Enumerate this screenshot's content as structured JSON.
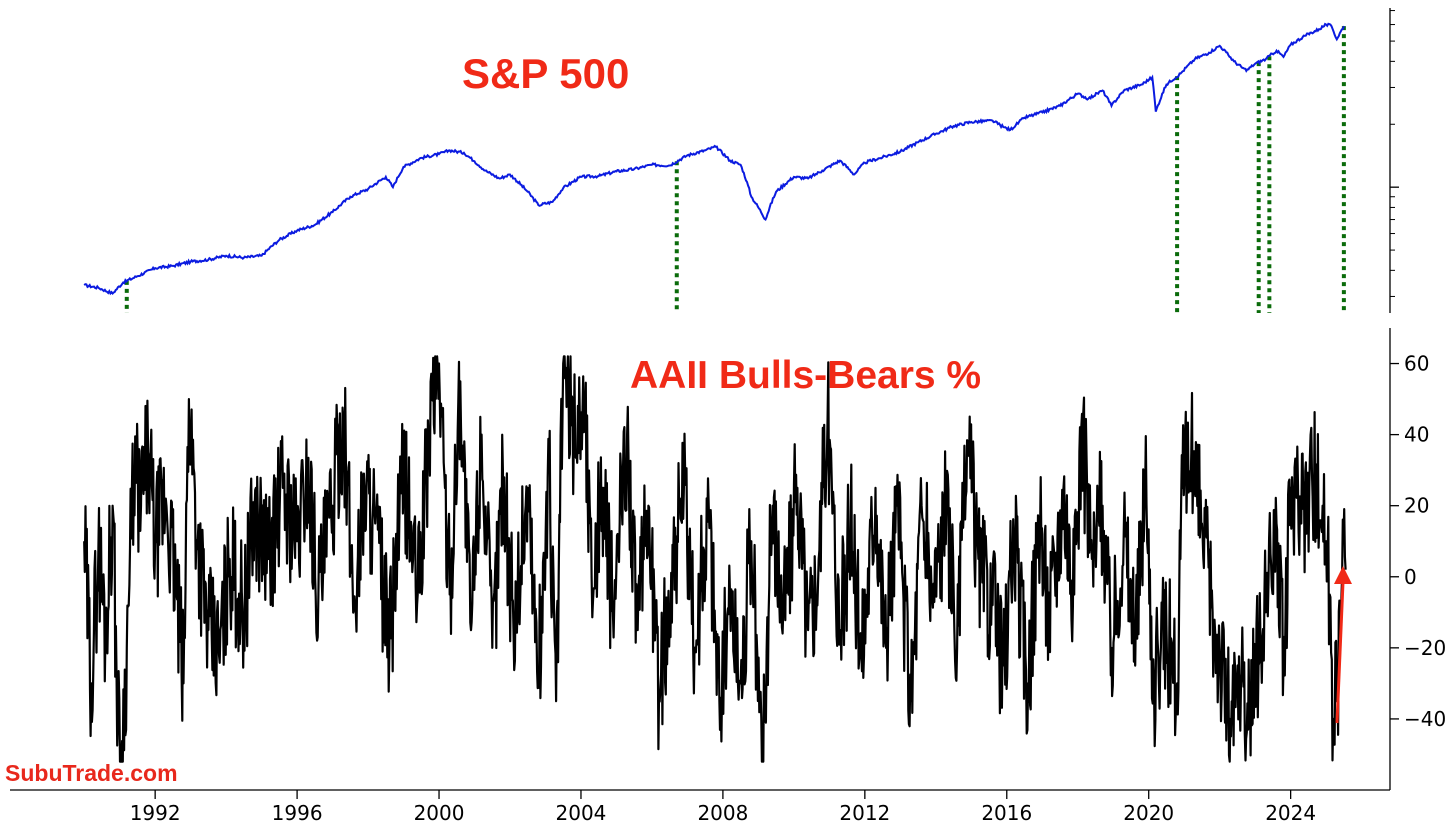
{
  "watermark": "SubuTrade.com",
  "colors": {
    "sp_line": "#0b1be0",
    "aaii_line": "#000000",
    "annotation": "#f02a17",
    "signal": "#0a6b0a"
  },
  "chart_data": [
    {
      "type": "line",
      "title": "S&P 500",
      "yscale": "log",
      "xlim": [
        1989.6,
        2026.8
      ],
      "ylim": [
        250,
        7200
      ],
      "ytick_values": [
        1000
      ],
      "x_ticks": [
        "1992",
        "1996",
        "2000",
        "2004",
        "2008",
        "2012",
        "2016",
        "2020",
        "2024"
      ],
      "series": [
        {
          "points": [
            [
              1990.0,
              340
            ],
            [
              1990.4,
              330
            ],
            [
              1990.8,
              310
            ],
            [
              1991.1,
              350
            ],
            [
              1991.5,
              375
            ],
            [
              1992.0,
              410
            ],
            [
              1992.5,
              420
            ],
            [
              1993.0,
              440
            ],
            [
              1993.5,
              450
            ],
            [
              1994.0,
              470
            ],
            [
              1994.5,
              460
            ],
            [
              1995.0,
              470
            ],
            [
              1995.5,
              560
            ],
            [
              1996.0,
              620
            ],
            [
              1996.5,
              660
            ],
            [
              1997.0,
              760
            ],
            [
              1997.5,
              900
            ],
            [
              1998.0,
              980
            ],
            [
              1998.5,
              1120
            ],
            [
              1998.7,
              1000
            ],
            [
              1999.0,
              1250
            ],
            [
              1999.5,
              1380
            ],
            [
              2000.0,
              1440
            ],
            [
              2000.3,
              1500
            ],
            [
              2000.7,
              1460
            ],
            [
              2001.0,
              1330
            ],
            [
              2001.3,
              1200
            ],
            [
              2001.7,
              1100
            ],
            [
              2002.0,
              1150
            ],
            [
              2002.5,
              950
            ],
            [
              2002.8,
              820
            ],
            [
              2003.2,
              850
            ],
            [
              2003.5,
              990
            ],
            [
              2004.0,
              1120
            ],
            [
              2004.5,
              1130
            ],
            [
              2005.0,
              1190
            ],
            [
              2005.5,
              1220
            ],
            [
              2006.0,
              1280
            ],
            [
              2006.5,
              1270
            ],
            [
              2007.0,
              1420
            ],
            [
              2007.5,
              1500
            ],
            [
              2007.8,
              1560
            ],
            [
              2008.2,
              1340
            ],
            [
              2008.5,
              1280
            ],
            [
              2008.8,
              900
            ],
            [
              2009.2,
              700
            ],
            [
              2009.5,
              950
            ],
            [
              2010.0,
              1120
            ],
            [
              2010.4,
              1100
            ],
            [
              2010.8,
              1200
            ],
            [
              2011.3,
              1340
            ],
            [
              2011.7,
              1150
            ],
            [
              2012.0,
              1310
            ],
            [
              2012.5,
              1390
            ],
            [
              2013.0,
              1480
            ],
            [
              2013.5,
              1640
            ],
            [
              2014.0,
              1800
            ],
            [
              2014.5,
              1960
            ],
            [
              2015.0,
              2050
            ],
            [
              2015.6,
              2080
            ],
            [
              2015.9,
              1940
            ],
            [
              2016.1,
              1880
            ],
            [
              2016.5,
              2150
            ],
            [
              2017.0,
              2280
            ],
            [
              2017.5,
              2450
            ],
            [
              2018.0,
              2800
            ],
            [
              2018.3,
              2650
            ],
            [
              2018.7,
              2900
            ],
            [
              2018.95,
              2450
            ],
            [
              2019.3,
              2900
            ],
            [
              2019.8,
              3100
            ],
            [
              2020.1,
              3350
            ],
            [
              2020.2,
              2300
            ],
            [
              2020.5,
              3100
            ],
            [
              2020.9,
              3500
            ],
            [
              2021.3,
              4100
            ],
            [
              2021.7,
              4400
            ],
            [
              2022.0,
              4750
            ],
            [
              2022.4,
              4000
            ],
            [
              2022.75,
              3600
            ],
            [
              2023.0,
              3900
            ],
            [
              2023.3,
              4100
            ],
            [
              2023.6,
              4500
            ],
            [
              2023.8,
              4200
            ],
            [
              2024.0,
              4800
            ],
            [
              2024.4,
              5300
            ],
            [
              2024.8,
              5700
            ],
            [
              2025.0,
              6000
            ],
            [
              2025.15,
              5900
            ],
            [
              2025.3,
              5100
            ],
            [
              2025.5,
              5900
            ]
          ]
        }
      ],
      "signal_years": [
        1991.2,
        2006.7,
        2020.8,
        2023.1,
        2023.4,
        2025.5
      ]
    },
    {
      "type": "line",
      "title": "AAII Bulls-Bears %",
      "xlim": [
        1989.6,
        2026.8
      ],
      "ylim": [
        -60,
        70
      ],
      "yticks": [
        "−40",
        "−20",
        "0",
        "20",
        "40",
        "60"
      ],
      "ytick_values": [
        -40,
        -20,
        0,
        20,
        40,
        60
      ],
      "x_ticks": [
        "1992",
        "1996",
        "2000",
        "2004",
        "2008",
        "2012",
        "2016",
        "2020",
        "2024"
      ],
      "x_tick_values": [
        1992,
        1996,
        2000,
        2004,
        2008,
        2012,
        2016,
        2020,
        2024
      ],
      "series": [
        {
          "points": [
            [
              1990.0,
              10
            ],
            [
              1990.2,
              -30
            ],
            [
              1990.4,
              8
            ],
            [
              1990.6,
              -15
            ],
            [
              1990.8,
              20
            ],
            [
              1990.95,
              -40
            ],
            [
              1991.05,
              -54
            ],
            [
              1991.2,
              -20
            ],
            [
              1991.4,
              30
            ],
            [
              1991.6,
              20
            ],
            [
              1991.8,
              35
            ],
            [
              1992.0,
              10
            ],
            [
              1992.3,
              22
            ],
            [
              1992.6,
              -5
            ],
            [
              1992.8,
              -30
            ],
            [
              1992.95,
              50
            ],
            [
              1993.2,
              10
            ],
            [
              1993.5,
              -15
            ],
            [
              1993.8,
              -22
            ],
            [
              1994.1,
              5
            ],
            [
              1994.5,
              -10
            ],
            [
              1994.8,
              18
            ],
            [
              1995.2,
              5
            ],
            [
              1995.6,
              25
            ],
            [
              1996.0,
              10
            ],
            [
              1996.3,
              30
            ],
            [
              1996.6,
              -5
            ],
            [
              1997.0,
              20
            ],
            [
              1997.3,
              45
            ],
            [
              1997.6,
              -8
            ],
            [
              1997.9,
              25
            ],
            [
              1998.2,
              15
            ],
            [
              1998.6,
              -20
            ],
            [
              1999.0,
              30
            ],
            [
              1999.4,
              -5
            ],
            [
              1999.8,
              50
            ],
            [
              2000.0,
              60
            ],
            [
              2000.3,
              -5
            ],
            [
              2000.6,
              55
            ],
            [
              2000.9,
              -15
            ],
            [
              2001.2,
              40
            ],
            [
              2001.5,
              -20
            ],
            [
              2001.8,
              30
            ],
            [
              2002.1,
              -15
            ],
            [
              2002.5,
              25
            ],
            [
              2002.8,
              -28
            ],
            [
              2003.1,
              30
            ],
            [
              2003.3,
              -35
            ],
            [
              2003.5,
              60
            ],
            [
              2003.8,
              40
            ],
            [
              2004.1,
              50
            ],
            [
              2004.3,
              0
            ],
            [
              2004.6,
              25
            ],
            [
              2004.9,
              -10
            ],
            [
              2005.3,
              40
            ],
            [
              2005.6,
              -15
            ],
            [
              2005.9,
              20
            ],
            [
              2006.2,
              -34
            ],
            [
              2006.6,
              5
            ],
            [
              2006.9,
              25
            ],
            [
              2007.2,
              -20
            ],
            [
              2007.6,
              20
            ],
            [
              2007.9,
              -35
            ],
            [
              2008.2,
              -5
            ],
            [
              2008.5,
              -30
            ],
            [
              2008.8,
              10
            ],
            [
              2009.1,
              -52
            ],
            [
              2009.4,
              20
            ],
            [
              2009.7,
              -10
            ],
            [
              2010.1,
              25
            ],
            [
              2010.4,
              -15
            ],
            [
              2010.7,
              5
            ],
            [
              2010.95,
              45
            ],
            [
              2011.3,
              -15
            ],
            [
              2011.6,
              15
            ],
            [
              2011.9,
              -22
            ],
            [
              2012.3,
              25
            ],
            [
              2012.6,
              -20
            ],
            [
              2012.9,
              20
            ],
            [
              2013.3,
              -35
            ],
            [
              2013.6,
              20
            ],
            [
              2013.9,
              -5
            ],
            [
              2014.3,
              20
            ],
            [
              2014.6,
              -20
            ],
            [
              2014.9,
              38
            ],
            [
              2015.2,
              5
            ],
            [
              2015.6,
              -8
            ],
            [
              2015.9,
              -25
            ],
            [
              2016.2,
              10
            ],
            [
              2016.6,
              -30
            ],
            [
              2016.9,
              15
            ],
            [
              2017.2,
              -10
            ],
            [
              2017.6,
              25
            ],
            [
              2017.9,
              -5
            ],
            [
              2018.1,
              42
            ],
            [
              2018.4,
              5
            ],
            [
              2018.7,
              20
            ],
            [
              2018.95,
              -20
            ],
            [
              2019.3,
              15
            ],
            [
              2019.6,
              -20
            ],
            [
              2019.9,
              25
            ],
            [
              2020.15,
              -30
            ],
            [
              2020.5,
              -15
            ],
            [
              2020.8,
              -30
            ],
            [
              2020.95,
              25
            ],
            [
              2021.2,
              35
            ],
            [
              2021.5,
              15
            ],
            [
              2021.8,
              -10
            ],
            [
              2022.0,
              -20
            ],
            [
              2022.3,
              -40
            ],
            [
              2022.6,
              -30
            ],
            [
              2022.8,
              -43
            ],
            [
              2023.0,
              -25
            ],
            [
              2023.3,
              -10
            ],
            [
              2023.6,
              15
            ],
            [
              2023.8,
              -25
            ],
            [
              2024.0,
              25
            ],
            [
              2024.3,
              15
            ],
            [
              2024.6,
              30
            ],
            [
              2024.9,
              20
            ],
            [
              2025.0,
              10
            ],
            [
              2025.1,
              -5
            ],
            [
              2025.2,
              -40
            ],
            [
              2025.3,
              -35
            ],
            [
              2025.45,
              0
            ],
            [
              2025.55,
              2
            ]
          ]
        }
      ]
    }
  ]
}
